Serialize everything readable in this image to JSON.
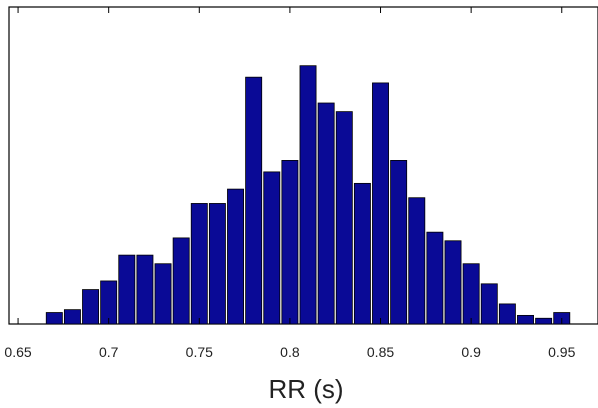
{
  "chart_data": {
    "type": "bar",
    "title": "",
    "xlabel": "RR (s)",
    "ylabel": "",
    "xlim": [
      0.645,
      0.97
    ],
    "ylim": [
      0,
      100
    ],
    "x_ticks": [
      {
        "value": 0.65,
        "label": "0.65"
      },
      {
        "value": 0.7,
        "label": "0.7"
      },
      {
        "value": 0.75,
        "label": "0.75"
      },
      {
        "value": 0.8,
        "label": "0.8"
      },
      {
        "value": 0.85,
        "label": "0.85"
      },
      {
        "value": 0.9,
        "label": "0.9"
      },
      {
        "value": 0.95,
        "label": "0.95"
      }
    ],
    "bin_width": 0.01,
    "y_ticks_shown": false,
    "grid": false,
    "bar_color": "#0a0a96",
    "bar_edge_color": "#000000",
    "series": [
      {
        "x": [
          0.67,
          0.68,
          0.69,
          0.7,
          0.71,
          0.72,
          0.73,
          0.74,
          0.75,
          0.76,
          0.77,
          0.78,
          0.79,
          0.8,
          0.81,
          0.82,
          0.83,
          0.84,
          0.85,
          0.86,
          0.87,
          0.88,
          0.89,
          0.9,
          0.91,
          0.92,
          0.93,
          0.94,
          0.95
        ],
        "values": [
          4,
          5,
          12,
          15,
          24,
          24,
          21,
          30,
          42,
          42,
          47,
          86,
          53,
          57,
          90,
          77,
          74,
          49,
          84,
          57,
          44,
          32,
          29,
          21,
          14,
          7,
          3,
          2,
          4
        ]
      }
    ]
  }
}
